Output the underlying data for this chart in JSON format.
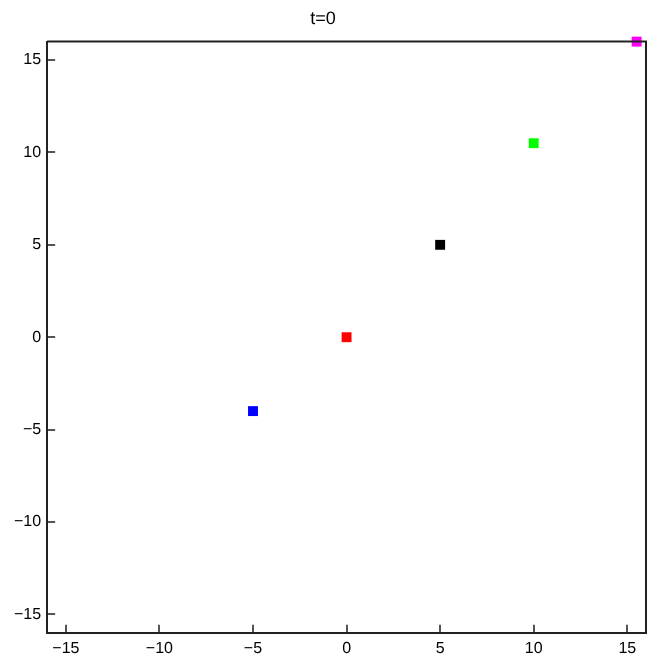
{
  "chart_data": {
    "type": "scatter",
    "title": "t=0",
    "x": [
      -5,
      0,
      5,
      10,
      15.5
    ],
    "values": [
      -4,
      0,
      5,
      10.5,
      16
    ],
    "colors": [
      "#0000ff",
      "#ff0000",
      "#000000",
      "#00ff00",
      "#ff00ff"
    ],
    "marker": "square",
    "grid": false,
    "legend": false,
    "xlim": [
      -16,
      16
    ],
    "ylim": [
      -16,
      16
    ],
    "xticks": [
      -15,
      -10,
      -5,
      0,
      5,
      10,
      15
    ],
    "yticks": [
      -15,
      -10,
      -5,
      0,
      5,
      10,
      15
    ]
  }
}
